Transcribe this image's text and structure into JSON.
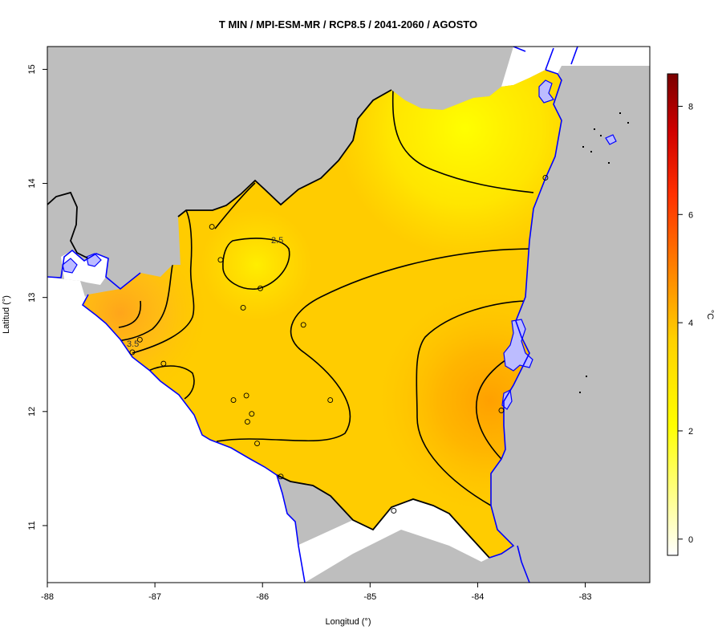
{
  "title": "T MIN / MPI-ESM-MR / RCP8.5 / 2041-2060 / AGOSTO",
  "x_axis": {
    "label": "Longitud (°)",
    "ticks": [
      -88,
      -87,
      -86,
      -85,
      -84,
      -83
    ]
  },
  "y_axis": {
    "label": "Latitud (°)",
    "ticks": [
      11,
      12,
      13,
      14,
      15
    ]
  },
  "extent": {
    "lon": [
      -88,
      -82.4
    ],
    "lat": [
      10.5,
      15.2
    ]
  },
  "colorbar": {
    "unit": "°C",
    "ticks": [
      0,
      2,
      4,
      6,
      8
    ],
    "range": [
      -0.3,
      8.6
    ],
    "colors": [
      "#ffffff",
      "#ffff00",
      "#ffd000",
      "#ff9a00",
      "#ff3000",
      "#d00000",
      "#7a0000"
    ]
  },
  "colors": {
    "land_background": "#bebebe",
    "water": "#ffffff",
    "coastline": "#0000ff",
    "border": "#000000",
    "contour": "#000000"
  },
  "contour_labels": [
    "2.5",
    "3.5"
  ],
  "stations": [
    [
      -86.47,
      13.62
    ],
    [
      -86.39,
      13.33
    ],
    [
      -86.02,
      13.08
    ],
    [
      -86.18,
      12.91
    ],
    [
      -85.62,
      12.76
    ],
    [
      -87.14,
      12.63
    ],
    [
      -87.21,
      12.52
    ],
    [
      -86.92,
      12.42
    ],
    [
      -86.27,
      12.1
    ],
    [
      -86.15,
      12.14
    ],
    [
      -86.1,
      11.98
    ],
    [
      -86.14,
      11.91
    ],
    [
      -86.05,
      11.72
    ],
    [
      -85.37,
      12.1
    ],
    [
      -85.83,
      11.43
    ],
    [
      -84.78,
      11.13
    ],
    [
      -83.78,
      12.01
    ],
    [
      -83.37,
      14.05
    ]
  ]
}
